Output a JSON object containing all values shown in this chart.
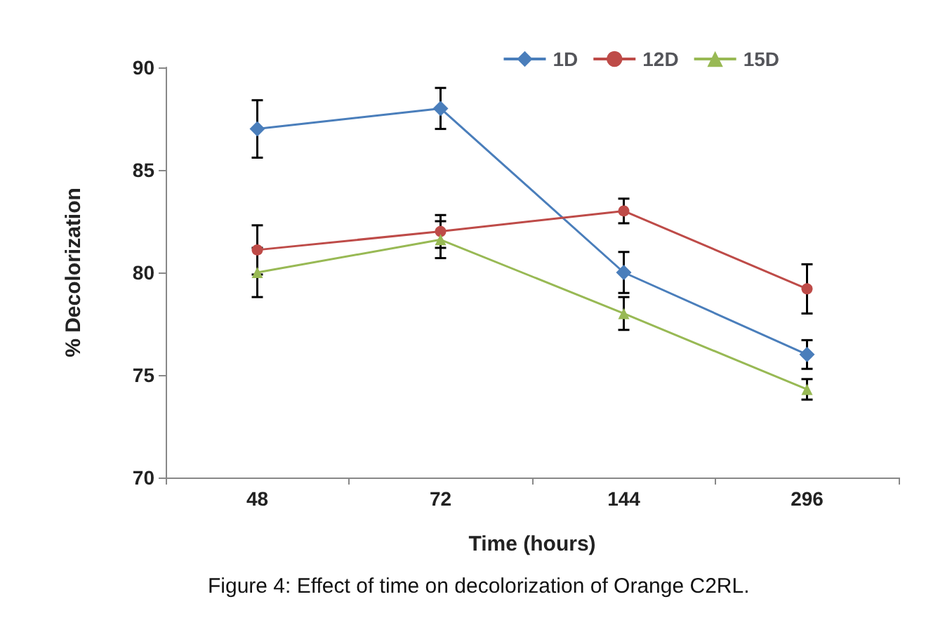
{
  "chart_data": {
    "type": "line",
    "xlabel": "Time (hours)",
    "ylabel": "% Decolorization",
    "categories": [
      "48",
      "72",
      "144",
      "296"
    ],
    "series": [
      {
        "name": "1D",
        "color": "#4a7ebb",
        "marker": "diamond",
        "values": [
          87,
          88,
          80,
          76
        ],
        "errors": [
          1.4,
          1.0,
          1.0,
          0.7
        ]
      },
      {
        "name": "12D",
        "color": "#be4b48",
        "marker": "circle",
        "values": [
          81.1,
          82,
          83,
          79.2
        ],
        "errors": [
          1.2,
          0.8,
          0.6,
          1.2
        ]
      },
      {
        "name": "15D",
        "color": "#98b954",
        "marker": "triangle",
        "values": [
          80,
          81.6,
          78,
          74.3
        ],
        "errors": [
          1.2,
          0.9,
          0.8,
          0.5
        ]
      }
    ],
    "ylim": [
      70,
      90
    ],
    "yticks": [
      70,
      75,
      80,
      85,
      90
    ],
    "grid": false,
    "legend": "top right",
    "annotations": [
      "Figure 4: Effect of time on decolorization of Orange C2RL."
    ]
  }
}
